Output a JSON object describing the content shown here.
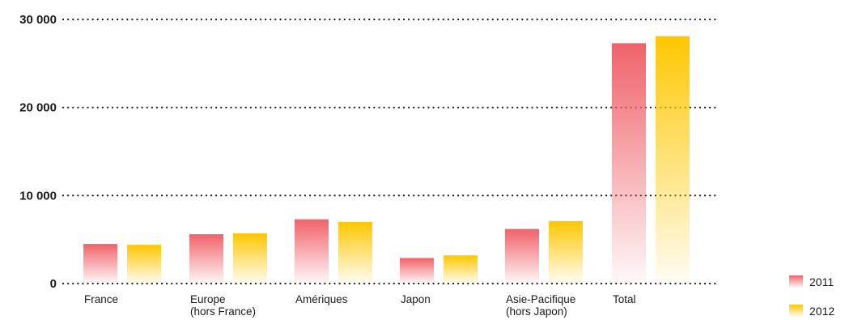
{
  "chart_data": {
    "type": "bar",
    "title": "",
    "xlabel": "",
    "ylabel": "",
    "ylim": [
      0,
      30000
    ],
    "y_ticks": [
      "0",
      "10 000",
      "20 000",
      "30 000"
    ],
    "y_tick_values": [
      0,
      10000,
      20000,
      30000
    ],
    "grid": "dotted horizontal",
    "legend_position": "bottom-right",
    "categories": [
      [
        "France"
      ],
      [
        "Europe",
        "(hors France)"
      ],
      [
        "Amériques"
      ],
      [
        "Japon"
      ],
      [
        "Asie-Pacifique",
        "(hors Japon)"
      ],
      [
        "Total"
      ]
    ],
    "series": [
      {
        "name": "2011",
        "color": "#f0626a",
        "values": [
          4500,
          5600,
          7300,
          2900,
          6200,
          27300
        ]
      },
      {
        "name": "2012",
        "color": "#ffc700",
        "values": [
          4400,
          5700,
          7000,
          3200,
          7100,
          28100
        ]
      }
    ]
  }
}
